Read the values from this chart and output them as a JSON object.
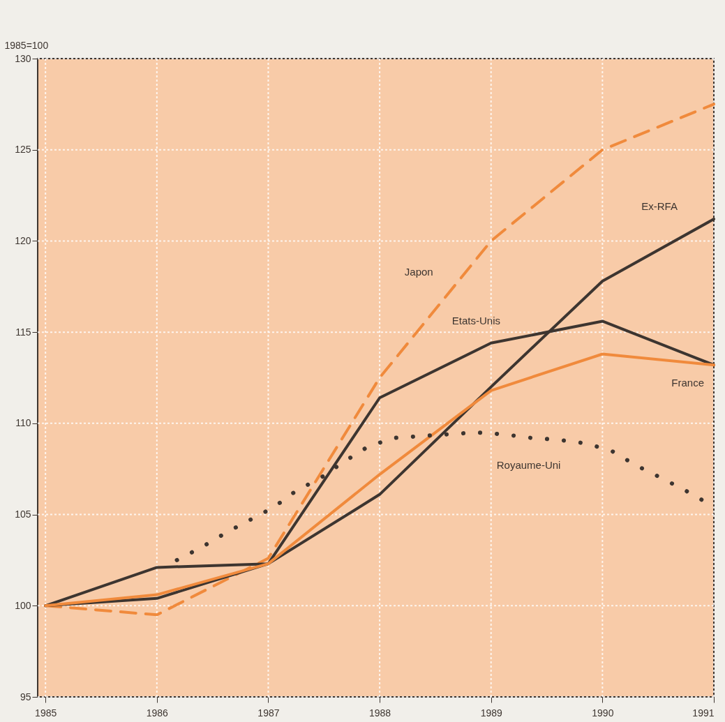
{
  "chart_data": {
    "type": "line",
    "ylabel": "1985=100",
    "xlim": [
      1984.93,
      1991
    ],
    "xticks": [
      1985,
      1986,
      1987,
      1988,
      1989,
      1990,
      1991
    ],
    "ylim": [
      95,
      130
    ],
    "yticks": [
      95,
      100,
      105,
      110,
      115,
      120,
      125,
      130
    ],
    "grid": true,
    "series": [
      {
        "name": "Japon",
        "color": "#f08a3c",
        "line_style": "dashed",
        "x": [
          1985,
          1986,
          1987,
          1988,
          1989,
          1990,
          1991
        ],
        "values": [
          100,
          99.5,
          102.6,
          112.5,
          120.0,
          125.0,
          127.5
        ]
      },
      {
        "name": "Ex-RFA",
        "color": "#3d3530",
        "line_style": "solid",
        "x": [
          1985,
          1986,
          1987,
          1988,
          1989,
          1990,
          1991
        ],
        "values": [
          100,
          100.4,
          102.3,
          106.1,
          112.0,
          117.8,
          121.2
        ]
      },
      {
        "name": "Etats-Unis",
        "color": "#3d3530",
        "line_style": "solid",
        "x": [
          1985,
          1986,
          1987,
          1988,
          1989,
          1990,
          1991
        ],
        "values": [
          100,
          102.1,
          102.3,
          111.4,
          114.4,
          115.6,
          113.2
        ]
      },
      {
        "name": "France",
        "color": "#f08a3c",
        "line_style": "solid",
        "x": [
          1985,
          1986,
          1987,
          1988,
          1989,
          1990,
          1991
        ],
        "values": [
          100,
          100.6,
          102.3,
          107.2,
          111.8,
          113.8,
          113.2
        ]
      },
      {
        "name": "Royaume-Uni",
        "color": "#3d3530",
        "line_style": "dotted",
        "x": [
          1986.18,
          1986.4,
          1986.62,
          1987.05,
          1987.25,
          1987.47,
          1987.68,
          1987.89,
          1988.12,
          1988.37,
          1988.61,
          1988.87,
          1989.11,
          1989.36,
          1989.6,
          1989.85,
          1990.08,
          1990.3,
          1990.53,
          1990.75,
          1990.98
        ],
        "values": [
          102.5,
          103.2,
          104.0,
          105.4,
          106.3,
          107.0,
          107.9,
          108.7,
          109.2,
          109.3,
          109.4,
          109.5,
          109.4,
          109.2,
          109.1,
          108.9,
          108.5,
          107.7,
          107.0,
          106.3,
          105.5
        ]
      }
    ]
  }
}
